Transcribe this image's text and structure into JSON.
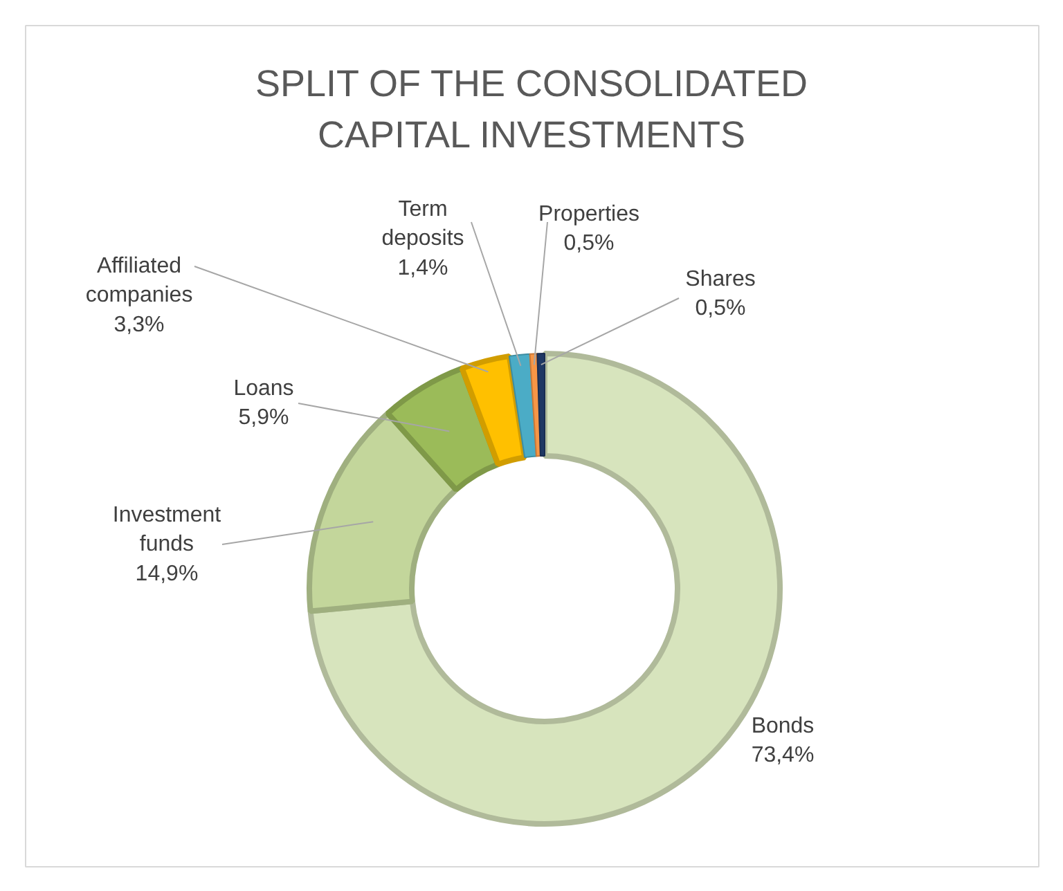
{
  "chart_data": {
    "type": "donut",
    "title": "SPLIT OF THE CONSOLIDATED CAPITAL INVESTMENTS",
    "categories": [
      "Bonds",
      "Investment funds",
      "Loans",
      "Affiliated companies",
      "Term deposits",
      "Properties",
      "Shares"
    ],
    "values": [
      73.4,
      14.9,
      5.9,
      3.3,
      1.4,
      0.5,
      0.5
    ],
    "value_labels": [
      "73,4%",
      "14,9%",
      "5,9%",
      "3,3%",
      "1,4%",
      "0,5%",
      "0,5%"
    ],
    "colors": [
      "#d7e4bd",
      "#c3d69b",
      "#9bbb59",
      "#ffc000",
      "#4bacc6",
      "#f79646",
      "#1f3864"
    ]
  }
}
